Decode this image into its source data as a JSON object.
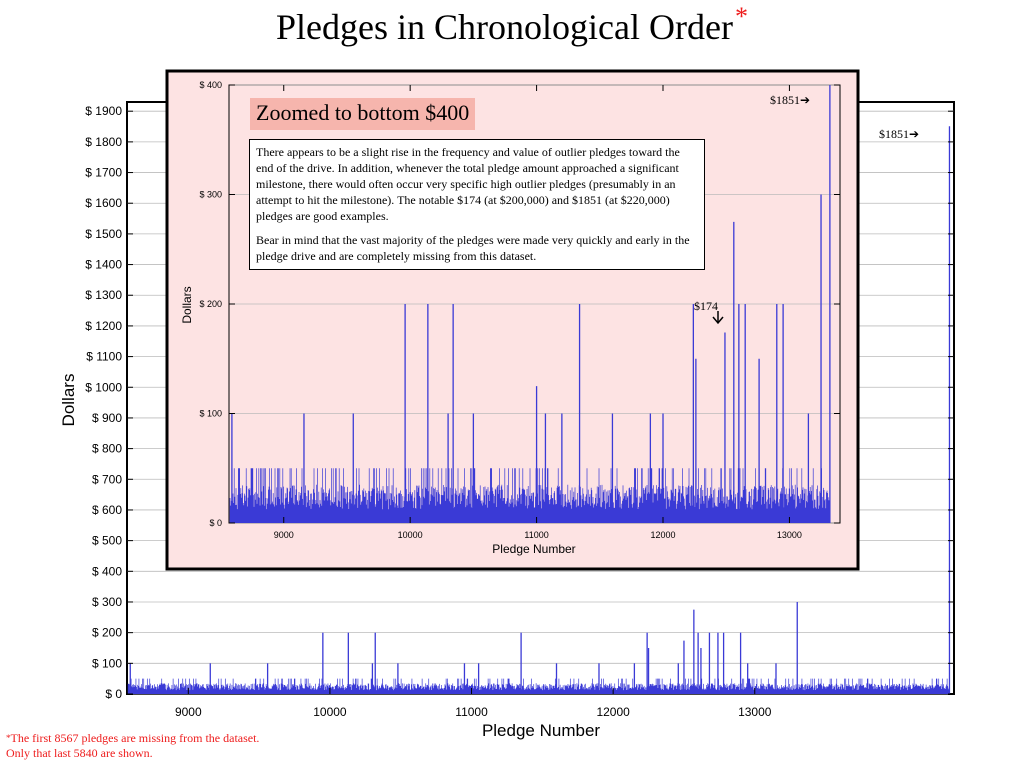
{
  "title": "Pledges in Chronological Order",
  "title_marker": "*",
  "footnote": {
    "marker": "*",
    "line1": "The first 8567 pledges are missing from the dataset.",
    "line2": "Only that last 5840 are shown."
  },
  "zoom_caption": "Zoomed to bottom $400",
  "zoom_note": {
    "para1": "There appears to be a slight rise in the frequency and value of outlier pledges toward the end of the drive.  In addition, whenever the total pledge amount approached a significant milestone, there would often occur very specific high outlier pledges (presumably in an attempt to hit the milestone).  The notable $174 (at $200,000) and $1851 (at $220,000) pledges are good examples.",
    "para2": "Bear in mind that the vast majority of the pledges were made very quickly and early in the pledge drive and are completely missing from this dataset."
  },
  "colors": {
    "bars": "#3a3ad6",
    "footnote": "#ee1c1c",
    "zoom_bg": "#fde3e3",
    "caption_bg": "#f6b5ad"
  },
  "chart_data": [
    {
      "type": "bar",
      "xlabel": "Pledge Number",
      "ylabel": "Dollars",
      "xlim": [
        8567,
        14407
      ],
      "ylim": [
        0,
        1930
      ],
      "x_ticks": [
        9000,
        10000,
        11000,
        12000,
        13000
      ],
      "x_tick_labels": [
        "9000",
        "10000",
        "11000",
        "12000",
        "13000"
      ],
      "y_ticks": [
        0,
        100,
        200,
        300,
        400,
        500,
        600,
        700,
        800,
        900,
        1000,
        1100,
        1200,
        1300,
        1400,
        1500,
        1600,
        1700,
        1800,
        1900
      ],
      "y_tick_labels": [
        "$ 0",
        "$ 100",
        "$ 200",
        "$ 300",
        "$ 400",
        "$ 500",
        "$ 600",
        "$ 700",
        "$ 800",
        "$ 900",
        "$ 1000",
        "$ 1100",
        "$ 1200",
        "$ 1300",
        "$ 1400",
        "$ 1500",
        "$ 1600",
        "$ 1700",
        "$ 1800",
        "$ 1900"
      ],
      "grid": true,
      "annotations": [
        {
          "text": "$1851➔",
          "x": 14375,
          "y": 1851
        }
      ],
      "baseline_pledge_range": [
        0,
        50
      ],
      "notable_pledges": [
        {
          "x": 8590,
          "y": 100
        },
        {
          "x": 9155,
          "y": 100
        },
        {
          "x": 9560,
          "y": 100
        },
        {
          "x": 9950,
          "y": 200
        },
        {
          "x": 10130,
          "y": 200
        },
        {
          "x": 10300,
          "y": 100
        },
        {
          "x": 10320,
          "y": 200
        },
        {
          "x": 10480,
          "y": 100
        },
        {
          "x": 10950,
          "y": 100
        },
        {
          "x": 11050,
          "y": 100
        },
        {
          "x": 11350,
          "y": 200
        },
        {
          "x": 11600,
          "y": 100
        },
        {
          "x": 11900,
          "y": 100
        },
        {
          "x": 12150,
          "y": 100
        },
        {
          "x": 12240,
          "y": 200
        },
        {
          "x": 12250,
          "y": 150
        },
        {
          "x": 12460,
          "y": 100
        },
        {
          "x": 12500,
          "y": 174
        },
        {
          "x": 12570,
          "y": 275
        },
        {
          "x": 12600,
          "y": 200
        },
        {
          "x": 12620,
          "y": 150
        },
        {
          "x": 12680,
          "y": 200
        },
        {
          "x": 12740,
          "y": 200
        },
        {
          "x": 12780,
          "y": 200
        },
        {
          "x": 12900,
          "y": 200
        },
        {
          "x": 12950,
          "y": 100
        },
        {
          "x": 13150,
          "y": 100
        },
        {
          "x": 13300,
          "y": 300
        },
        {
          "x": 14375,
          "y": 1851
        }
      ]
    },
    {
      "type": "bar",
      "xlabel": "Pledge Number",
      "ylabel": "Dollars",
      "xlim": [
        8567,
        13400
      ],
      "ylim": [
        0,
        400
      ],
      "x_ticks": [
        9000,
        10000,
        11000,
        12000,
        13000
      ],
      "x_tick_labels": [
        "9000",
        "10000",
        "11000",
        "12000",
        "13000"
      ],
      "y_ticks": [
        0,
        100,
        200,
        300,
        400
      ],
      "y_tick_labels": [
        "$ 0",
        "$ 100",
        "$ 200",
        "$ 300",
        "$ 400"
      ],
      "grid": true,
      "annotations": [
        {
          "text": "$1851➔",
          "x": 13320,
          "y": 1851
        },
        {
          "text": "$174",
          "x": 12490,
          "y": 174,
          "arrow": "down"
        }
      ],
      "baseline_pledge_range": [
        0,
        50
      ],
      "notable_pledges": [
        {
          "x": 8590,
          "y": 100
        },
        {
          "x": 9160,
          "y": 100
        },
        {
          "x": 9550,
          "y": 100
        },
        {
          "x": 9960,
          "y": 200
        },
        {
          "x": 10140,
          "y": 200
        },
        {
          "x": 10300,
          "y": 100
        },
        {
          "x": 10340,
          "y": 200
        },
        {
          "x": 10500,
          "y": 100
        },
        {
          "x": 11000,
          "y": 125
        },
        {
          "x": 11070,
          "y": 100
        },
        {
          "x": 11200,
          "y": 100
        },
        {
          "x": 11340,
          "y": 200
        },
        {
          "x": 11600,
          "y": 100
        },
        {
          "x": 11900,
          "y": 100
        },
        {
          "x": 12000,
          "y": 100
        },
        {
          "x": 12240,
          "y": 200
        },
        {
          "x": 12260,
          "y": 150
        },
        {
          "x": 12490,
          "y": 174
        },
        {
          "x": 12560,
          "y": 275
        },
        {
          "x": 12600,
          "y": 200
        },
        {
          "x": 12650,
          "y": 200
        },
        {
          "x": 12760,
          "y": 150
        },
        {
          "x": 12900,
          "y": 200
        },
        {
          "x": 12950,
          "y": 200
        },
        {
          "x": 13150,
          "y": 100
        },
        {
          "x": 13250,
          "y": 300
        },
        {
          "x": 13320,
          "y": 1851
        }
      ]
    }
  ]
}
